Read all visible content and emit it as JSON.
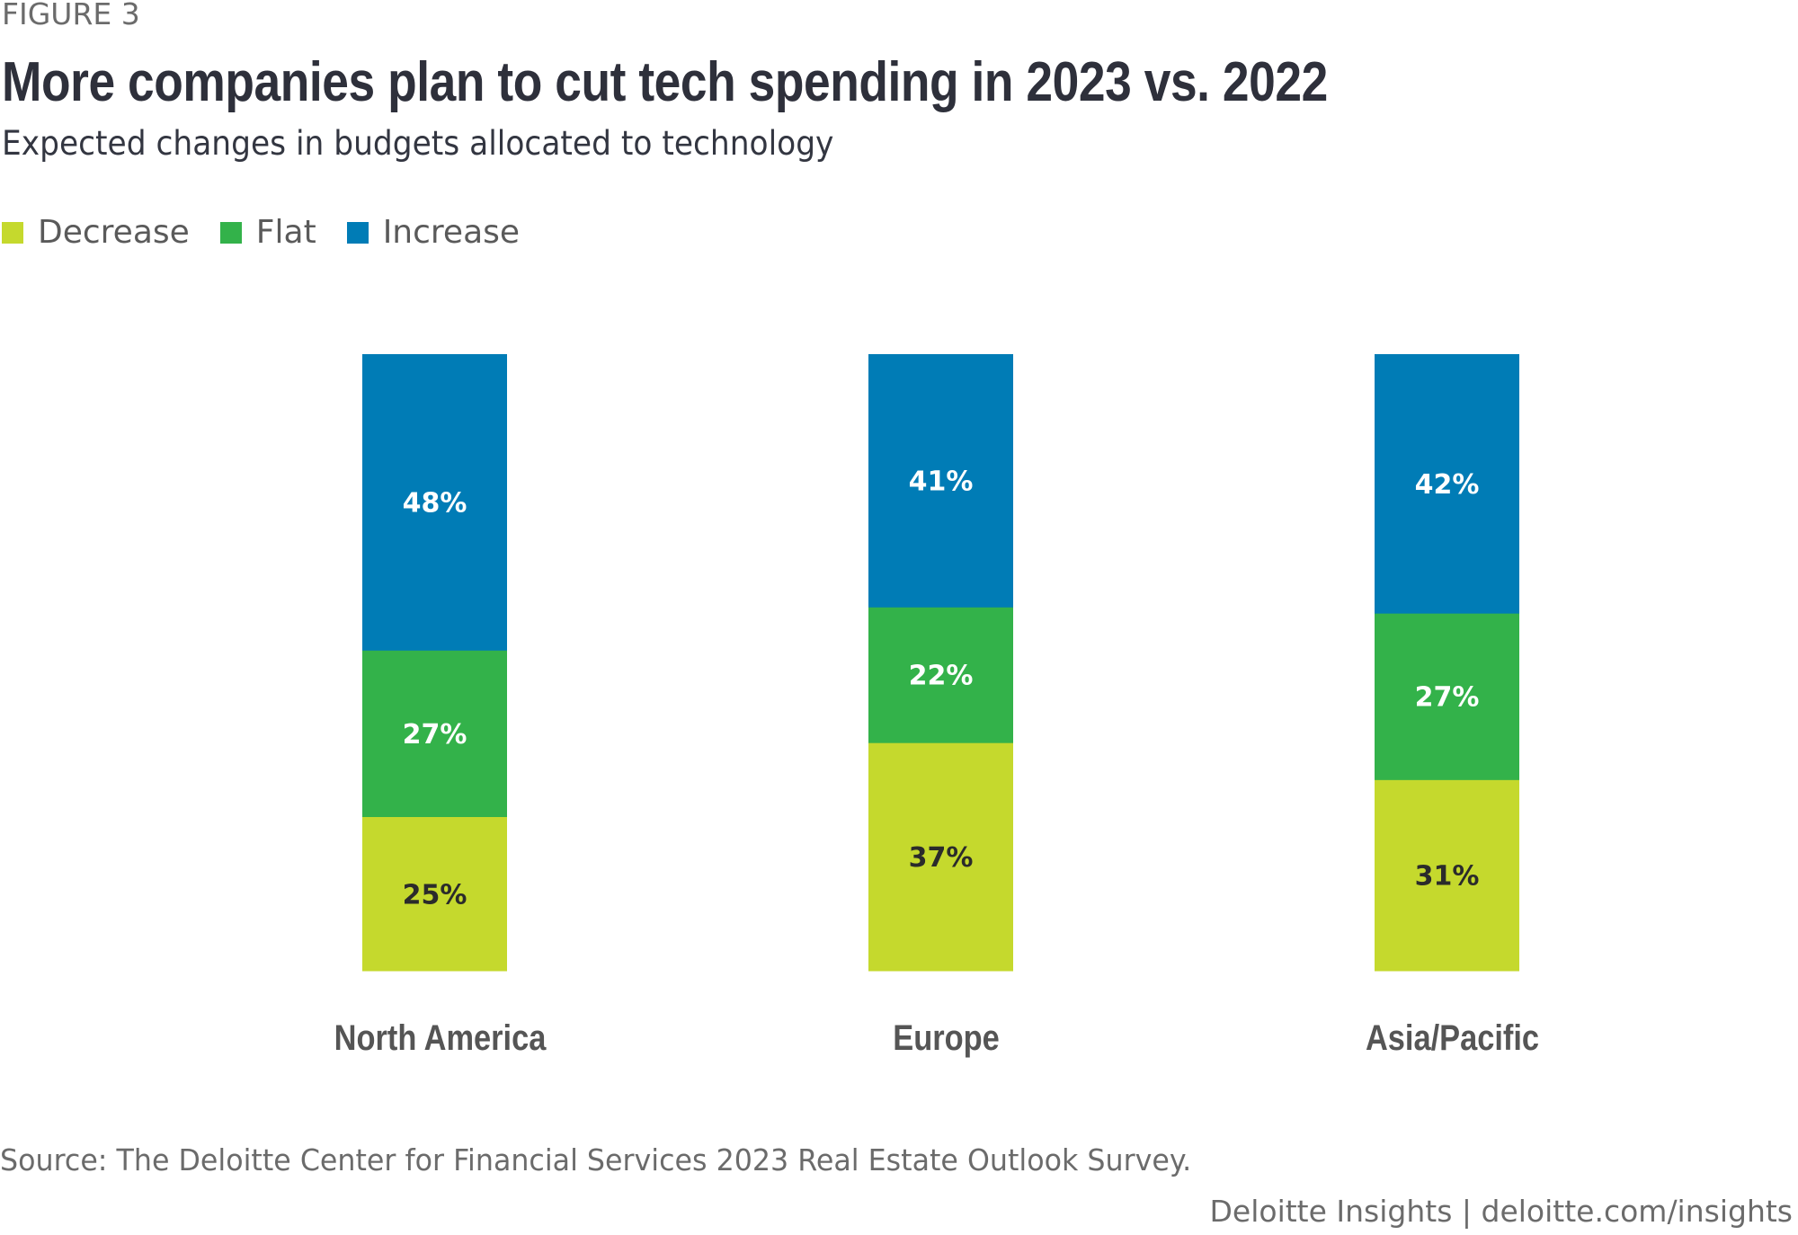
{
  "header": {
    "figure_label": "FIGURE 3",
    "title": "More companies plan to cut tech spending in 2023 vs. 2022",
    "subtitle": "Expected changes in budgets allocated to technology"
  },
  "legend": [
    {
      "label": "Decrease",
      "color": "#c5d92d"
    },
    {
      "label": "Flat",
      "color": "#33b24a"
    },
    {
      "label": "Increase",
      "color": "#007cb6"
    }
  ],
  "chart_data": {
    "type": "bar",
    "stacked": true,
    "orientation": "vertical",
    "title": "More companies plan to cut tech spending in 2023 vs. 2022",
    "subtitle": "Expected changes in budgets allocated to technology",
    "xlabel": "",
    "ylabel": "",
    "ylim": [
      0,
      100
    ],
    "grid": false,
    "legend_position": "top-left",
    "categories": [
      "North America",
      "Europe",
      "Asia/Pacific"
    ],
    "series": [
      {
        "name": "Decrease",
        "color": "#c5d92d",
        "label_color": "#2b2b2b",
        "values": [
          25,
          37,
          31
        ]
      },
      {
        "name": "Flat",
        "color": "#33b24a",
        "label_color": "#ffffff",
        "values": [
          27,
          22,
          27
        ]
      },
      {
        "name": "Increase",
        "color": "#007cb6",
        "label_color": "#ffffff",
        "values": [
          48,
          41,
          42
        ]
      }
    ],
    "value_format": "{v}%"
  },
  "footer": {
    "source": "Source: The Deloitte Center for Financial Services 2023 Real Estate Outlook Survey.",
    "credit": "Deloitte Insights | deloitte.com/insights"
  }
}
